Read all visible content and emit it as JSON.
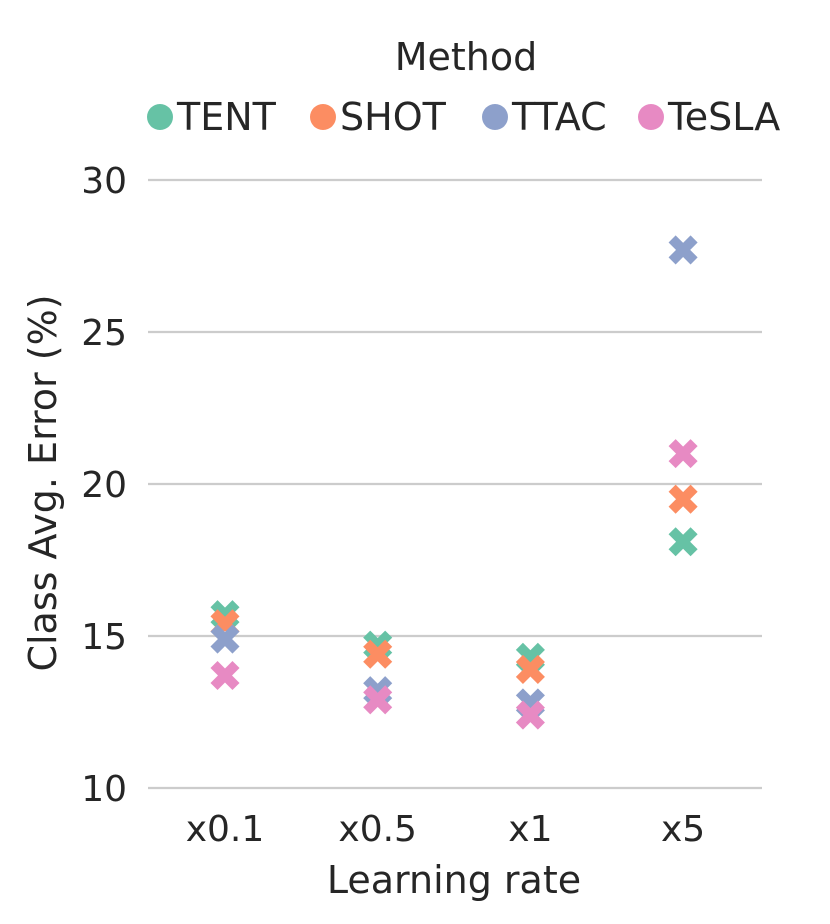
{
  "chart_data": {
    "type": "scatter",
    "marker": "x",
    "legend_title": "Method",
    "legend_position": "top",
    "xlabel": "Learning rate",
    "ylabel": "Class Avg. Error (%)",
    "categories": [
      "x0.1",
      "x0.5",
      "x1",
      "x5"
    ],
    "ylim": [
      10,
      30
    ],
    "yticks": [
      10,
      15,
      20,
      25,
      30
    ],
    "grid": "horizontal",
    "series": [
      {
        "name": "TENT",
        "color": "#66c2a5",
        "values": [
          15.7,
          14.7,
          14.3,
          18.1
        ]
      },
      {
        "name": "SHOT",
        "color": "#fc8d62",
        "values": [
          15.4,
          14.4,
          13.9,
          19.5
        ]
      },
      {
        "name": "TTAC",
        "color": "#8da0cb",
        "values": [
          14.9,
          13.2,
          12.8,
          27.7
        ]
      },
      {
        "name": "TeSLA",
        "color": "#e78ac3",
        "values": [
          13.7,
          12.9,
          12.4,
          21.0
        ]
      }
    ]
  }
}
